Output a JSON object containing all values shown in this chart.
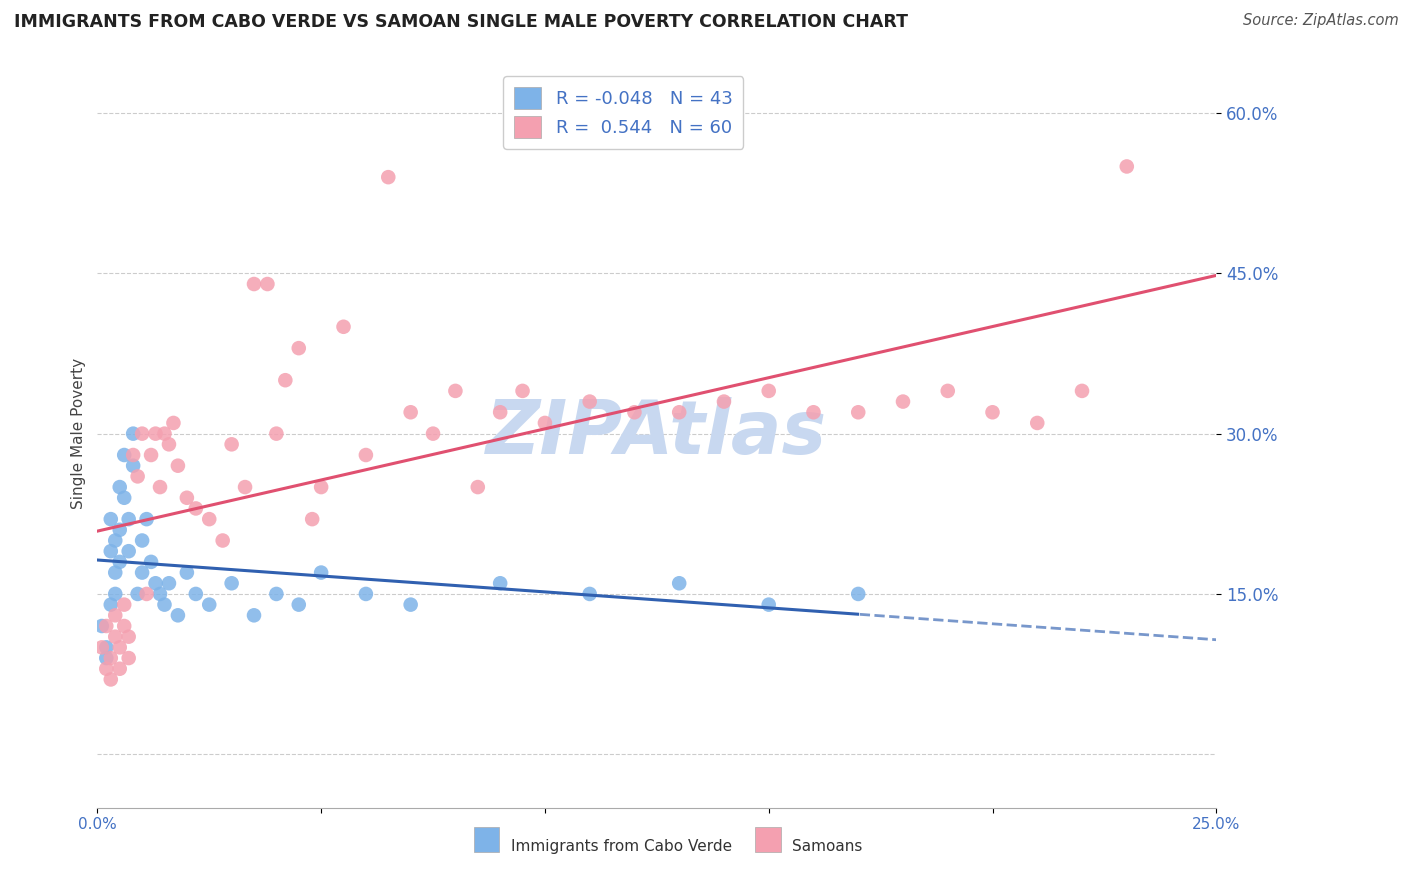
{
  "title": "IMMIGRANTS FROM CABO VERDE VS SAMOAN SINGLE MALE POVERTY CORRELATION CHART",
  "source": "Source: ZipAtlas.com",
  "ylabel": "Single Male Poverty",
  "x_label_cabo": "Immigrants from Cabo Verde",
  "x_label_samoan": "Samoans",
  "xlim": [
    0.0,
    0.25
  ],
  "ylim": [
    -0.05,
    0.65
  ],
  "yticks": [
    0.15,
    0.3,
    0.45,
    0.6
  ],
  "ytick_labels": [
    "15.0%",
    "30.0%",
    "45.0%",
    "60.0%"
  ],
  "xticks": [
    0.0,
    0.05,
    0.1,
    0.15,
    0.2,
    0.25
  ],
  "xtick_labels": [
    "0.0%",
    "",
    "",
    "",
    "",
    "25.0%"
  ],
  "legend_R_cabo": "-0.048",
  "legend_N_cabo": "43",
  "legend_R_samoan": "0.544",
  "legend_N_samoan": "60",
  "color_cabo": "#7eb3e8",
  "color_samoan": "#f4a0b0",
  "color_trend_cabo": "#3060b0",
  "color_trend_samoan": "#e05070",
  "watermark": "ZIPAtlas",
  "watermark_color": "#c8d8f0",
  "cabo_x": [
    0.001,
    0.002,
    0.002,
    0.003,
    0.003,
    0.003,
    0.004,
    0.004,
    0.004,
    0.005,
    0.005,
    0.005,
    0.006,
    0.006,
    0.007,
    0.007,
    0.008,
    0.008,
    0.009,
    0.01,
    0.01,
    0.011,
    0.012,
    0.013,
    0.014,
    0.015,
    0.016,
    0.018,
    0.02,
    0.022,
    0.025,
    0.03,
    0.035,
    0.04,
    0.045,
    0.05,
    0.06,
    0.07,
    0.09,
    0.11,
    0.13,
    0.15,
    0.17
  ],
  "cabo_y": [
    0.12,
    0.1,
    0.09,
    0.22,
    0.19,
    0.14,
    0.2,
    0.17,
    0.15,
    0.25,
    0.21,
    0.18,
    0.28,
    0.24,
    0.22,
    0.19,
    0.3,
    0.27,
    0.15,
    0.17,
    0.2,
    0.22,
    0.18,
    0.16,
    0.15,
    0.14,
    0.16,
    0.13,
    0.17,
    0.15,
    0.14,
    0.16,
    0.13,
    0.15,
    0.14,
    0.17,
    0.15,
    0.14,
    0.16,
    0.15,
    0.16,
    0.14,
    0.15
  ],
  "samoan_x": [
    0.001,
    0.002,
    0.002,
    0.003,
    0.003,
    0.004,
    0.004,
    0.005,
    0.005,
    0.006,
    0.006,
    0.007,
    0.007,
    0.008,
    0.009,
    0.01,
    0.011,
    0.012,
    0.013,
    0.014,
    0.015,
    0.016,
    0.017,
    0.018,
    0.02,
    0.022,
    0.025,
    0.028,
    0.03,
    0.033,
    0.035,
    0.038,
    0.04,
    0.042,
    0.045,
    0.048,
    0.05,
    0.055,
    0.06,
    0.065,
    0.07,
    0.075,
    0.08,
    0.085,
    0.09,
    0.095,
    0.1,
    0.11,
    0.12,
    0.13,
    0.14,
    0.15,
    0.16,
    0.17,
    0.18,
    0.19,
    0.2,
    0.21,
    0.22,
    0.23
  ],
  "samoan_y": [
    0.1,
    0.08,
    0.12,
    0.07,
    0.09,
    0.11,
    0.13,
    0.08,
    0.1,
    0.12,
    0.14,
    0.09,
    0.11,
    0.28,
    0.26,
    0.3,
    0.15,
    0.28,
    0.3,
    0.25,
    0.3,
    0.29,
    0.31,
    0.27,
    0.24,
    0.23,
    0.22,
    0.2,
    0.29,
    0.25,
    0.44,
    0.44,
    0.3,
    0.35,
    0.38,
    0.22,
    0.25,
    0.4,
    0.28,
    0.54,
    0.32,
    0.3,
    0.34,
    0.25,
    0.32,
    0.34,
    0.31,
    0.33,
    0.32,
    0.32,
    0.33,
    0.34,
    0.32,
    0.32,
    0.33,
    0.34,
    0.32,
    0.31,
    0.34,
    0.55
  ]
}
